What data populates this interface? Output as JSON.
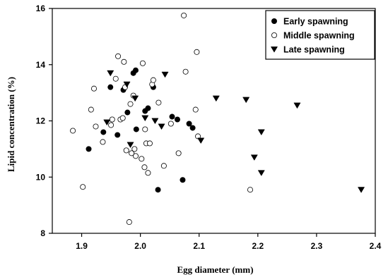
{
  "chart_data": {
    "type": "scatter",
    "xlabel": "Egg diameter (mm)",
    "ylabel": "Lipid concentration (%)",
    "xlim": [
      1.85,
      2.4
    ],
    "ylim": [
      8,
      16
    ],
    "xticks": [
      "1.9",
      "2.0",
      "2.1",
      "2.2",
      "2.3",
      "2.4"
    ],
    "yticks": [
      "8",
      "10",
      "12",
      "14",
      "16"
    ],
    "grid": false,
    "legend_position": "top-right",
    "series": [
      {
        "name": "Early spawning",
        "marker": "filled-circle",
        "color": "#000000",
        "points": [
          [
            1.912,
            11.0
          ],
          [
            1.937,
            11.6
          ],
          [
            1.949,
            13.2
          ],
          [
            1.961,
            11.5
          ],
          [
            1.971,
            13.1
          ],
          [
            1.978,
            12.3
          ],
          [
            1.988,
            13.7
          ],
          [
            1.992,
            13.8
          ],
          [
            1.993,
            11.7
          ],
          [
            2.008,
            12.35
          ],
          [
            2.013,
            12.45
          ],
          [
            2.022,
            13.2
          ],
          [
            2.03,
            9.55
          ],
          [
            2.054,
            12.15
          ],
          [
            2.063,
            12.05
          ],
          [
            2.072,
            9.9
          ],
          [
            2.083,
            11.9
          ],
          [
            2.089,
            11.75
          ]
        ]
      },
      {
        "name": "Middle spawning",
        "marker": "open-circle",
        "color": "#000000",
        "points": [
          [
            1.885,
            11.65
          ],
          [
            1.902,
            9.65
          ],
          [
            1.916,
            12.4
          ],
          [
            1.921,
            13.15
          ],
          [
            1.924,
            11.8
          ],
          [
            1.936,
            11.25
          ],
          [
            1.95,
            11.85
          ],
          [
            1.952,
            12.05
          ],
          [
            1.958,
            13.5
          ],
          [
            1.962,
            14.3
          ],
          [
            1.966,
            12.05
          ],
          [
            1.97,
            12.1
          ],
          [
            1.972,
            14.1
          ],
          [
            1.974,
            13.2
          ],
          [
            1.976,
            10.95
          ],
          [
            1.981,
            8.4
          ],
          [
            1.983,
            12.6
          ],
          [
            1.985,
            10.85
          ],
          [
            1.988,
            12.9
          ],
          [
            1.99,
            11.0
          ],
          [
            1.992,
            10.75
          ],
          [
            2.002,
            10.65
          ],
          [
            2.004,
            14.05
          ],
          [
            2.007,
            10.35
          ],
          [
            2.008,
            11.7
          ],
          [
            2.01,
            11.2
          ],
          [
            2.013,
            10.15
          ],
          [
            2.016,
            11.2
          ],
          [
            2.02,
            13.3
          ],
          [
            2.022,
            13.45
          ],
          [
            2.031,
            12.65
          ],
          [
            2.04,
            10.4
          ],
          [
            2.052,
            11.9
          ],
          [
            2.065,
            10.85
          ],
          [
            2.074,
            15.75
          ],
          [
            2.077,
            13.75
          ],
          [
            2.094,
            12.4
          ],
          [
            2.096,
            14.45
          ],
          [
            2.098,
            11.45
          ],
          [
            2.187,
            9.55
          ]
        ]
      },
      {
        "name": "Late spawning",
        "marker": "filled-triangle-down",
        "color": "#000000",
        "points": [
          [
            1.943,
            11.95
          ],
          [
            1.949,
            13.7
          ],
          [
            1.977,
            13.3
          ],
          [
            1.983,
            11.15
          ],
          [
            1.991,
            12.8
          ],
          [
            2.008,
            12.1
          ],
          [
            2.025,
            12.0
          ],
          [
            2.036,
            11.8
          ],
          [
            2.042,
            13.65
          ],
          [
            2.103,
            11.3
          ],
          [
            2.129,
            12.8
          ],
          [
            2.18,
            12.75
          ],
          [
            2.194,
            10.7
          ],
          [
            2.206,
            11.6
          ],
          [
            2.206,
            10.15
          ],
          [
            2.267,
            12.55
          ],
          [
            2.376,
            9.55
          ]
        ]
      }
    ]
  }
}
